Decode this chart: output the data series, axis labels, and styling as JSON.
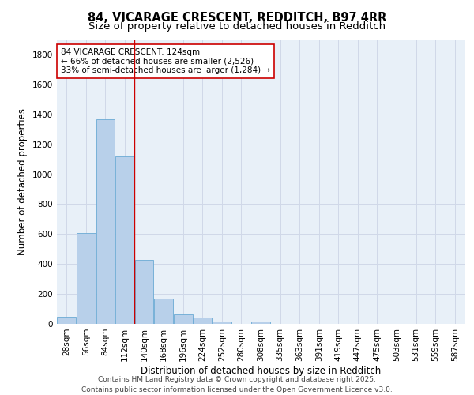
{
  "title": "84, VICARAGE CRESCENT, REDDITCH, B97 4RR",
  "subtitle": "Size of property relative to detached houses in Redditch",
  "xlabel": "Distribution of detached houses by size in Redditch",
  "ylabel": "Number of detached properties",
  "categories": [
    "28sqm",
    "56sqm",
    "84sqm",
    "112sqm",
    "140sqm",
    "168sqm",
    "196sqm",
    "224sqm",
    "252sqm",
    "280sqm",
    "308sqm",
    "335sqm",
    "363sqm",
    "391sqm",
    "419sqm",
    "447sqm",
    "475sqm",
    "503sqm",
    "531sqm",
    "559sqm",
    "587sqm"
  ],
  "bar_heights": [
    50,
    605,
    1365,
    1120,
    430,
    170,
    65,
    40,
    15,
    0,
    15,
    0,
    0,
    0,
    0,
    0,
    0,
    0,
    0,
    0,
    0
  ],
  "bar_color": "#b8d0ea",
  "bar_edge_color": "#6aaad4",
  "bar_width": 0.97,
  "grid_color": "#d0d8e8",
  "bg_color": "#e8f0f8",
  "vline_x": 3.5,
  "vline_color": "#cc0000",
  "annotation_text": "84 VICARAGE CRESCENT: 124sqm\n← 66% of detached houses are smaller (2,526)\n33% of semi-detached houses are larger (1,284) →",
  "annotation_box_color": "#cc0000",
  "ylim": [
    0,
    1900
  ],
  "yticks": [
    0,
    200,
    400,
    600,
    800,
    1000,
    1200,
    1400,
    1600,
    1800
  ],
  "footer": "Contains HM Land Registry data © Crown copyright and database right 2025.\nContains public sector information licensed under the Open Government Licence v3.0.",
  "title_fontsize": 10.5,
  "subtitle_fontsize": 9.5,
  "axis_label_fontsize": 8.5,
  "tick_fontsize": 7.5,
  "annotation_fontsize": 7.5,
  "footer_fontsize": 6.5
}
